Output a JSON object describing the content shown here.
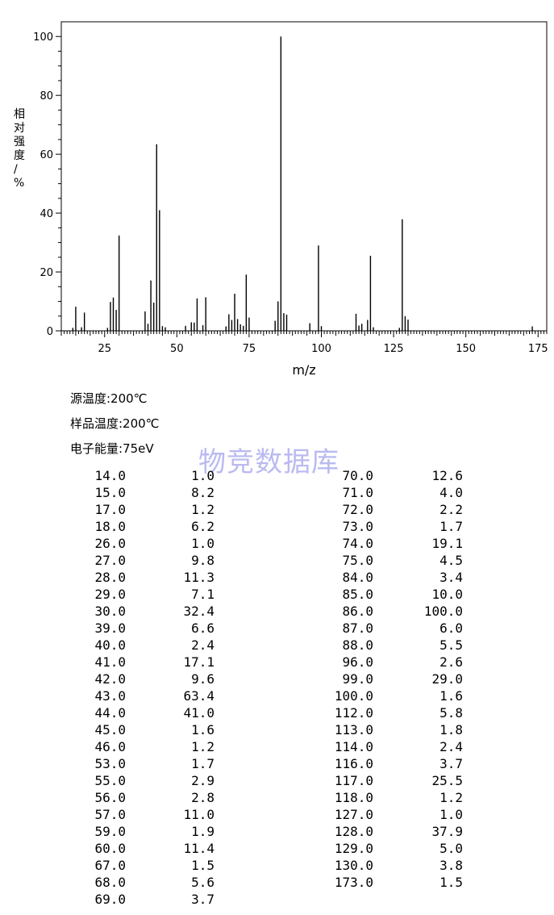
{
  "chart_data": {
    "type": "bar",
    "xlabel": "m/z",
    "ylabel": "相对强度/%",
    "xlim": [
      10,
      178
    ],
    "ylim": [
      0,
      105
    ],
    "xticks": [
      25,
      50,
      75,
      100,
      125,
      150,
      175
    ],
    "yticks": [
      0,
      20,
      40,
      60,
      80,
      100
    ],
    "grid": false,
    "peaks": [
      {
        "mz": 14.0,
        "intensity": 1.0
      },
      {
        "mz": 15.0,
        "intensity": 8.2
      },
      {
        "mz": 17.0,
        "intensity": 1.2
      },
      {
        "mz": 18.0,
        "intensity": 6.2
      },
      {
        "mz": 26.0,
        "intensity": 1.0
      },
      {
        "mz": 27.0,
        "intensity": 9.8
      },
      {
        "mz": 28.0,
        "intensity": 11.3
      },
      {
        "mz": 29.0,
        "intensity": 7.1
      },
      {
        "mz": 30.0,
        "intensity": 32.4
      },
      {
        "mz": 39.0,
        "intensity": 6.6
      },
      {
        "mz": 40.0,
        "intensity": 2.4
      },
      {
        "mz": 41.0,
        "intensity": 17.1
      },
      {
        "mz": 42.0,
        "intensity": 9.6
      },
      {
        "mz": 43.0,
        "intensity": 63.4
      },
      {
        "mz": 44.0,
        "intensity": 41.0
      },
      {
        "mz": 45.0,
        "intensity": 1.6
      },
      {
        "mz": 46.0,
        "intensity": 1.2
      },
      {
        "mz": 53.0,
        "intensity": 1.7
      },
      {
        "mz": 55.0,
        "intensity": 2.9
      },
      {
        "mz": 56.0,
        "intensity": 2.8
      },
      {
        "mz": 57.0,
        "intensity": 11.0
      },
      {
        "mz": 59.0,
        "intensity": 1.9
      },
      {
        "mz": 60.0,
        "intensity": 11.4
      },
      {
        "mz": 67.0,
        "intensity": 1.5
      },
      {
        "mz": 68.0,
        "intensity": 5.6
      },
      {
        "mz": 69.0,
        "intensity": 3.7
      },
      {
        "mz": 70.0,
        "intensity": 12.6
      },
      {
        "mz": 71.0,
        "intensity": 4.0
      },
      {
        "mz": 72.0,
        "intensity": 2.2
      },
      {
        "mz": 73.0,
        "intensity": 1.7
      },
      {
        "mz": 74.0,
        "intensity": 19.1
      },
      {
        "mz": 75.0,
        "intensity": 4.5
      },
      {
        "mz": 84.0,
        "intensity": 3.4
      },
      {
        "mz": 85.0,
        "intensity": 10.0
      },
      {
        "mz": 86.0,
        "intensity": 100.0
      },
      {
        "mz": 87.0,
        "intensity": 6.0
      },
      {
        "mz": 88.0,
        "intensity": 5.5
      },
      {
        "mz": 96.0,
        "intensity": 2.6
      },
      {
        "mz": 99.0,
        "intensity": 29.0
      },
      {
        "mz": 100.0,
        "intensity": 1.6
      },
      {
        "mz": 112.0,
        "intensity": 5.8
      },
      {
        "mz": 113.0,
        "intensity": 1.8
      },
      {
        "mz": 114.0,
        "intensity": 2.4
      },
      {
        "mz": 116.0,
        "intensity": 3.7
      },
      {
        "mz": 117.0,
        "intensity": 25.5
      },
      {
        "mz": 118.0,
        "intensity": 1.2
      },
      {
        "mz": 127.0,
        "intensity": 1.0
      },
      {
        "mz": 128.0,
        "intensity": 37.9
      },
      {
        "mz": 129.0,
        "intensity": 5.0
      },
      {
        "mz": 130.0,
        "intensity": 3.8
      },
      {
        "mz": 173.0,
        "intensity": 1.5
      }
    ]
  },
  "conditions": {
    "source_temp": "源温度:200℃",
    "sample_temp": "样品温度:200℃",
    "electron_energy": "电子能量:75eV"
  },
  "watermark": "物竞数据库",
  "table": {
    "left": [
      [
        "14.0",
        "1.0"
      ],
      [
        "15.0",
        "8.2"
      ],
      [
        "17.0",
        "1.2"
      ],
      [
        "18.0",
        "6.2"
      ],
      [
        "26.0",
        "1.0"
      ],
      [
        "27.0",
        "9.8"
      ],
      [
        "28.0",
        "11.3"
      ],
      [
        "29.0",
        "7.1"
      ],
      [
        "30.0",
        "32.4"
      ],
      [
        "39.0",
        "6.6"
      ],
      [
        "40.0",
        "2.4"
      ],
      [
        "41.0",
        "17.1"
      ],
      [
        "42.0",
        "9.6"
      ],
      [
        "43.0",
        "63.4"
      ],
      [
        "44.0",
        "41.0"
      ],
      [
        "45.0",
        "1.6"
      ],
      [
        "46.0",
        "1.2"
      ],
      [
        "53.0",
        "1.7"
      ],
      [
        "55.0",
        "2.9"
      ],
      [
        "56.0",
        "2.8"
      ],
      [
        "57.0",
        "11.0"
      ],
      [
        "59.0",
        "1.9"
      ],
      [
        "60.0",
        "11.4"
      ],
      [
        "67.0",
        "1.5"
      ],
      [
        "68.0",
        "5.6"
      ],
      [
        "69.0",
        "3.7"
      ]
    ],
    "right": [
      [
        "70.0",
        "12.6"
      ],
      [
        "71.0",
        "4.0"
      ],
      [
        "72.0",
        "2.2"
      ],
      [
        "73.0",
        "1.7"
      ],
      [
        "74.0",
        "19.1"
      ],
      [
        "75.0",
        "4.5"
      ],
      [
        "84.0",
        "3.4"
      ],
      [
        "85.0",
        "10.0"
      ],
      [
        "86.0",
        "100.0"
      ],
      [
        "87.0",
        "6.0"
      ],
      [
        "88.0",
        "5.5"
      ],
      [
        "96.0",
        "2.6"
      ],
      [
        "99.0",
        "29.0"
      ],
      [
        "100.0",
        "1.6"
      ],
      [
        "112.0",
        "5.8"
      ],
      [
        "113.0",
        "1.8"
      ],
      [
        "114.0",
        "2.4"
      ],
      [
        "116.0",
        "3.7"
      ],
      [
        "117.0",
        "25.5"
      ],
      [
        "118.0",
        "1.2"
      ],
      [
        "127.0",
        "1.0"
      ],
      [
        "128.0",
        "37.9"
      ],
      [
        "129.0",
        "5.0"
      ],
      [
        "130.0",
        "3.8"
      ],
      [
        "173.0",
        "1.5"
      ]
    ]
  }
}
